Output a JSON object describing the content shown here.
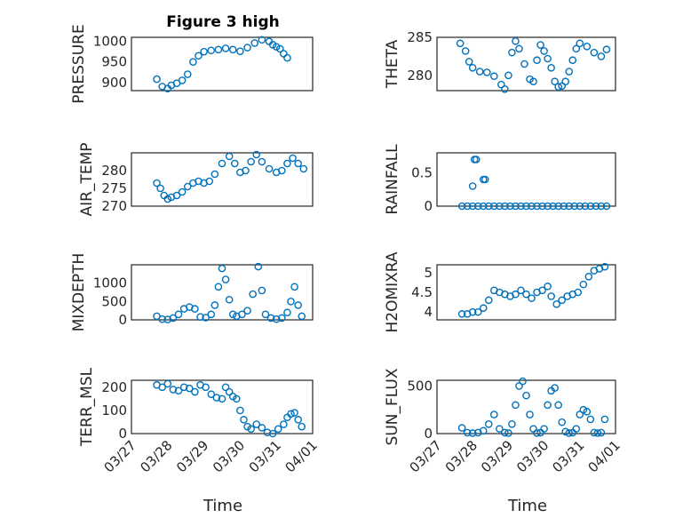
{
  "figure": {
    "title": "Figure 3 high",
    "xlabel": "Time",
    "accent_color": "#0072bd"
  },
  "chart_data": [
    {
      "type": "scatter",
      "ylabel": "PRESSURE",
      "xlim": [
        0,
        5
      ],
      "ylim": [
        880,
        1010
      ],
      "xticks": [
        "03/27",
        "03/28",
        "03/29",
        "03/30",
        "03/31",
        "04/01"
      ],
      "show_xticklabels": false,
      "yticks": [
        900,
        950,
        1000
      ],
      "grid": true,
      "minor_grid": true,
      "x": [
        0.7,
        0.85,
        1.0,
        1.1,
        1.25,
        1.4,
        1.55,
        1.7,
        1.85,
        2.0,
        2.2,
        2.4,
        2.6,
        2.8,
        3.0,
        3.2,
        3.4,
        3.6,
        3.8,
        3.9,
        4.0,
        4.1,
        4.2,
        4.3
      ],
      "y": [
        908,
        890,
        885,
        893,
        898,
        905,
        920,
        950,
        965,
        975,
        978,
        980,
        983,
        980,
        976,
        985,
        996,
        1004,
        1000,
        992,
        987,
        982,
        970,
        960
      ]
    },
    {
      "type": "scatter",
      "ylabel": "THETA",
      "xlim": [
        0,
        5
      ],
      "ylim": [
        278,
        285
      ],
      "xticks": [
        "03/27",
        "03/28",
        "03/29",
        "03/30",
        "03/31",
        "04/01"
      ],
      "show_xticklabels": false,
      "yticks": [
        280,
        285
      ],
      "grid": true,
      "minor_grid": true,
      "x": [
        0.65,
        0.8,
        0.9,
        1.0,
        1.2,
        1.4,
        1.6,
        1.8,
        1.9,
        2.0,
        2.1,
        2.2,
        2.3,
        2.45,
        2.6,
        2.7,
        2.8,
        2.9,
        3.0,
        3.1,
        3.2,
        3.3,
        3.4,
        3.5,
        3.6,
        3.7,
        3.8,
        3.9,
        4.0,
        4.2,
        4.4,
        4.6,
        4.75
      ],
      "y": [
        284.2,
        283.2,
        281.8,
        281.0,
        280.5,
        280.4,
        279.9,
        278.8,
        278.2,
        280.0,
        283.0,
        284.5,
        283.5,
        281.5,
        279.5,
        279.2,
        282.0,
        284.0,
        283.2,
        282.2,
        281.0,
        279.2,
        278.5,
        278.6,
        279.2,
        280.5,
        282.0,
        283.5,
        284.2,
        283.8,
        283.0,
        282.5,
        283.4
      ]
    },
    {
      "type": "scatter",
      "ylabel": "AIR_TEMP",
      "xlim": [
        0,
        5
      ],
      "ylim": [
        270,
        285
      ],
      "xticks": [
        "03/27",
        "03/28",
        "03/29",
        "03/30",
        "03/31",
        "04/01"
      ],
      "show_xticklabels": false,
      "yticks": [
        270,
        275,
        280
      ],
      "grid": true,
      "minor_grid": true,
      "x": [
        0.7,
        0.8,
        0.9,
        1.0,
        1.1,
        1.25,
        1.4,
        1.55,
        1.7,
        1.85,
        2.0,
        2.15,
        2.3,
        2.5,
        2.7,
        2.85,
        3.0,
        3.15,
        3.3,
        3.45,
        3.6,
        3.8,
        4.0,
        4.15,
        4.3,
        4.45,
        4.6,
        4.75
      ],
      "y": [
        276.5,
        275.0,
        273.0,
        272.0,
        272.5,
        273.0,
        274.0,
        275.5,
        276.5,
        277.0,
        276.5,
        277.0,
        279.0,
        282.0,
        284.0,
        282.0,
        279.5,
        280.0,
        282.5,
        284.5,
        282.5,
        280.5,
        279.5,
        280.0,
        282.0,
        283.5,
        282.0,
        280.5
      ]
    },
    {
      "type": "scatter",
      "ylabel": "RAINFALL",
      "xlim": [
        0,
        5
      ],
      "ylim": [
        0,
        0.8
      ],
      "xticks": [
        "03/27",
        "03/28",
        "03/29",
        "03/30",
        "03/31",
        "04/01"
      ],
      "show_xticklabels": false,
      "yticks": [
        0,
        0.5
      ],
      "grid": true,
      "minor_grid": true,
      "x": [
        0.7,
        0.85,
        1.0,
        1.15,
        1.3,
        1.45,
        1.6,
        1.75,
        1.9,
        2.05,
        2.2,
        2.35,
        2.5,
        2.65,
        2.8,
        2.95,
        3.1,
        3.25,
        3.4,
        3.55,
        3.7,
        3.85,
        4.0,
        4.15,
        4.3,
        4.45,
        4.6,
        4.75,
        1.0,
        1.05,
        1.1,
        1.3,
        1.35
      ],
      "y": [
        0,
        0,
        0,
        0,
        0,
        0,
        0,
        0,
        0,
        0,
        0,
        0,
        0,
        0,
        0,
        0,
        0,
        0,
        0,
        0,
        0,
        0,
        0,
        0,
        0,
        0,
        0,
        0,
        0.3,
        0.7,
        0.7,
        0.4,
        0.4
      ]
    },
    {
      "type": "scatter",
      "ylabel": "MIXDEPTH",
      "xlim": [
        0,
        5
      ],
      "ylim": [
        0,
        1500
      ],
      "xticks": [
        "03/27",
        "03/28",
        "03/29",
        "03/30",
        "03/31",
        "04/01"
      ],
      "show_xticklabels": false,
      "yticks": [
        0,
        500,
        1000
      ],
      "grid": true,
      "minor_grid": true,
      "x": [
        0.7,
        0.85,
        1.0,
        1.15,
        1.3,
        1.45,
        1.6,
        1.75,
        1.9,
        2.05,
        2.2,
        2.3,
        2.4,
        2.5,
        2.6,
        2.7,
        2.8,
        2.9,
        3.05,
        3.2,
        3.35,
        3.5,
        3.6,
        3.7,
        3.85,
        4.0,
        4.15,
        4.3,
        4.4,
        4.5,
        4.6,
        4.7
      ],
      "y": [
        100,
        20,
        10,
        50,
        150,
        300,
        350,
        300,
        80,
        60,
        150,
        400,
        900,
        1400,
        1100,
        550,
        150,
        100,
        150,
        250,
        700,
        1450,
        800,
        150,
        50,
        20,
        50,
        200,
        500,
        900,
        400,
        100
      ]
    },
    {
      "type": "scatter",
      "ylabel": "H2OMIXRA",
      "xlim": [
        0,
        5
      ],
      "ylim": [
        3.8,
        5.2
      ],
      "xticks": [
        "03/27",
        "03/28",
        "03/29",
        "03/30",
        "03/31",
        "04/01"
      ],
      "show_xticklabels": false,
      "yticks": [
        4,
        4.5,
        5
      ],
      "grid": true,
      "minor_grid": true,
      "x": [
        0.7,
        0.85,
        1.0,
        1.15,
        1.3,
        1.45,
        1.6,
        1.75,
        1.9,
        2.05,
        2.2,
        2.35,
        2.5,
        2.65,
        2.8,
        2.95,
        3.1,
        3.2,
        3.35,
        3.5,
        3.65,
        3.8,
        3.95,
        4.1,
        4.25,
        4.4,
        4.55,
        4.7
      ],
      "y": [
        3.95,
        3.95,
        4.0,
        4.0,
        4.1,
        4.3,
        4.55,
        4.5,
        4.45,
        4.4,
        4.45,
        4.55,
        4.45,
        4.35,
        4.5,
        4.55,
        4.65,
        4.4,
        4.2,
        4.3,
        4.4,
        4.45,
        4.5,
        4.7,
        4.9,
        5.05,
        5.1,
        5.15
      ]
    },
    {
      "type": "scatter",
      "ylabel": "TERR_MSL",
      "xlim": [
        0,
        5
      ],
      "ylim": [
        0,
        230
      ],
      "xticks": [
        "03/27",
        "03/28",
        "03/29",
        "03/30",
        "03/31",
        "04/01"
      ],
      "show_xticklabels": true,
      "yticks": [
        0,
        100,
        200
      ],
      "grid": true,
      "minor_grid": true,
      "x": [
        0.7,
        0.85,
        1.0,
        1.15,
        1.3,
        1.45,
        1.6,
        1.75,
        1.9,
        2.05,
        2.2,
        2.35,
        2.5,
        2.6,
        2.7,
        2.8,
        2.9,
        3.0,
        3.1,
        3.2,
        3.3,
        3.45,
        3.6,
        3.75,
        3.9,
        4.05,
        4.2,
        4.3,
        4.4,
        4.5,
        4.6,
        4.7
      ],
      "y": [
        210,
        200,
        215,
        190,
        185,
        200,
        195,
        180,
        210,
        200,
        170,
        155,
        150,
        200,
        180,
        160,
        150,
        100,
        60,
        30,
        20,
        40,
        25,
        5,
        0,
        20,
        40,
        70,
        85,
        90,
        60,
        30
      ]
    },
    {
      "type": "scatter",
      "ylabel": "SUN_FLUX",
      "xlim": [
        0,
        5
      ],
      "ylim": [
        0,
        560
      ],
      "xticks": [
        "03/27",
        "03/28",
        "03/29",
        "03/30",
        "03/31",
        "04/01"
      ],
      "show_xticklabels": true,
      "yticks": [
        0,
        500
      ],
      "grid": true,
      "minor_grid": true,
      "x": [
        0.7,
        0.85,
        1.0,
        1.15,
        1.3,
        1.45,
        1.6,
        1.75,
        1.9,
        2.0,
        2.1,
        2.2,
        2.3,
        2.4,
        2.5,
        2.6,
        2.7,
        2.8,
        2.9,
        3.0,
        3.1,
        3.2,
        3.3,
        3.4,
        3.5,
        3.6,
        3.7,
        3.8,
        3.9,
        4.0,
        4.1,
        4.2,
        4.3,
        4.4,
        4.5,
        4.6,
        4.7
      ],
      "y": [
        60,
        10,
        5,
        10,
        30,
        100,
        200,
        50,
        10,
        5,
        100,
        300,
        500,
        550,
        400,
        200,
        50,
        5,
        10,
        50,
        300,
        450,
        480,
        300,
        120,
        20,
        5,
        10,
        50,
        200,
        250,
        230,
        150,
        10,
        5,
        10,
        150
      ]
    }
  ]
}
